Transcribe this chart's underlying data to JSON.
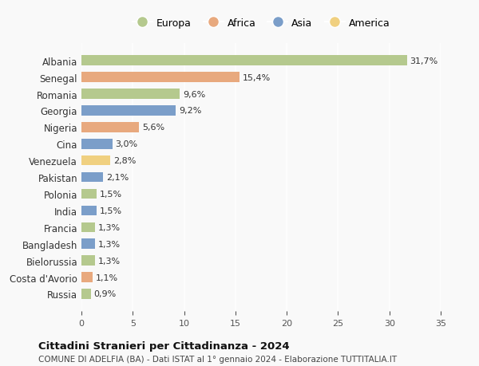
{
  "categories": [
    "Albania",
    "Senegal",
    "Romania",
    "Georgia",
    "Nigeria",
    "Cina",
    "Venezuela",
    "Pakistan",
    "Polonia",
    "India",
    "Francia",
    "Bangladesh",
    "Bielorussia",
    "Costa d'Avorio",
    "Russia"
  ],
  "values": [
    31.7,
    15.4,
    9.6,
    9.2,
    5.6,
    3.0,
    2.8,
    2.1,
    1.5,
    1.5,
    1.3,
    1.3,
    1.3,
    1.1,
    0.9
  ],
  "labels": [
    "31,7%",
    "15,4%",
    "9,6%",
    "9,2%",
    "5,6%",
    "3,0%",
    "2,8%",
    "2,1%",
    "1,5%",
    "1,5%",
    "1,3%",
    "1,3%",
    "1,3%",
    "1,1%",
    "0,9%"
  ],
  "continent": [
    "Europa",
    "Africa",
    "Europa",
    "Asia",
    "Africa",
    "Asia",
    "America",
    "Asia",
    "Europa",
    "Asia",
    "Europa",
    "Asia",
    "Europa",
    "Africa",
    "Europa"
  ],
  "colors": {
    "Europa": "#b5c98e",
    "Africa": "#e8a97e",
    "Asia": "#7b9ec9",
    "America": "#f0d080"
  },
  "legend_order": [
    "Europa",
    "Africa",
    "Asia",
    "America"
  ],
  "xlim": [
    0,
    35
  ],
  "xticks": [
    0,
    5,
    10,
    15,
    20,
    25,
    30,
    35
  ],
  "title": "Cittadini Stranieri per Cittadinanza - 2024",
  "subtitle": "COMUNE DI ADELFIA (BA) - Dati ISTAT al 1° gennaio 2024 - Elaborazione TUTTITALIA.IT",
  "bg_color": "#f9f9f9",
  "grid_color": "#ffffff",
  "bar_height": 0.6
}
